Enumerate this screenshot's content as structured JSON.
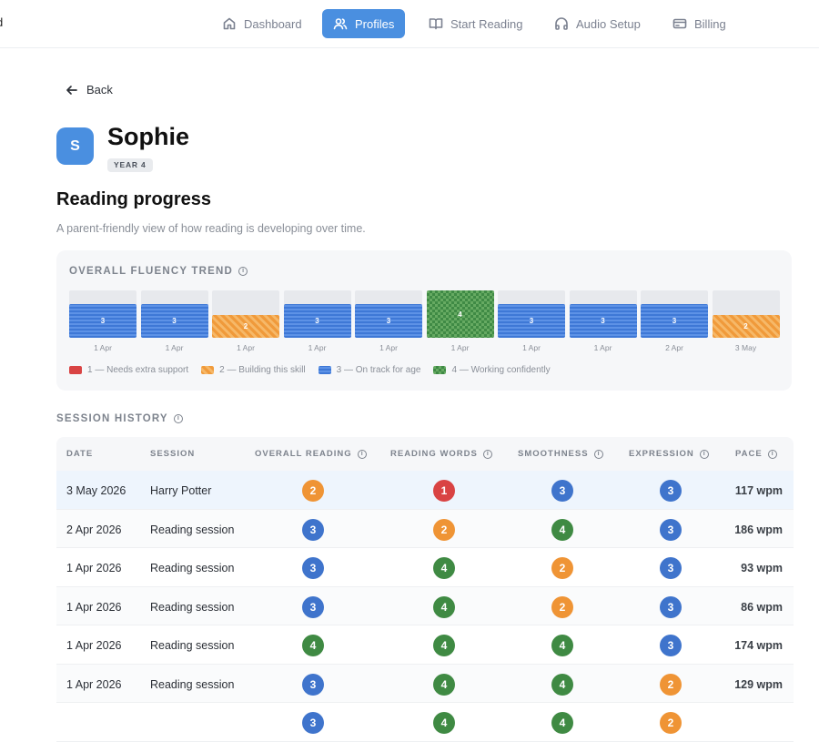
{
  "nav": {
    "cut_label": "d",
    "items": [
      {
        "label": "Dashboard",
        "icon": "home-icon"
      },
      {
        "label": "Profiles",
        "icon": "users-icon",
        "active": true
      },
      {
        "label": "Start Reading",
        "icon": "book-icon"
      },
      {
        "label": "Audio Setup",
        "icon": "headphones-icon"
      },
      {
        "label": "Billing",
        "icon": "credit-card-icon"
      }
    ]
  },
  "back_label": "Back",
  "profile": {
    "initial": "S",
    "name": "Sophie",
    "year": "YEAR 4"
  },
  "progress": {
    "title": "Reading progress",
    "subtitle": "A parent-friendly view of how reading is developing over time."
  },
  "trend": {
    "title": "OVERALL FLUENCY TREND",
    "chart_data": {
      "type": "bar",
      "categories": [
        "1 Apr",
        "1 Apr",
        "1 Apr",
        "1 Apr",
        "1 Apr",
        "1 Apr",
        "1 Apr",
        "1 Apr",
        "2 Apr",
        "3 May"
      ],
      "values": [
        3,
        3,
        2,
        3,
        3,
        4,
        3,
        3,
        3,
        2
      ],
      "ylim": [
        0,
        4
      ],
      "colors": {
        "1": "#d94444",
        "2": "#f09a3b",
        "3": "#3e78d6",
        "4": "#3f8a45"
      }
    },
    "legend": [
      {
        "level": 1,
        "label": "1 — Needs extra support"
      },
      {
        "level": 2,
        "label": "2 — Building this skill"
      },
      {
        "level": 3,
        "label": "3 — On track for age"
      },
      {
        "level": 4,
        "label": "4 — Working confidently"
      }
    ]
  },
  "history": {
    "title": "SESSION HISTORY",
    "columns": [
      "DATE",
      "SESSION",
      "OVERALL READING",
      "READING WORDS",
      "SMOOTHNESS",
      "EXPRESSION",
      "PACE"
    ],
    "rows": [
      {
        "date": "3 May 2026",
        "session": "Harry Potter",
        "overall": 2,
        "words": 1,
        "smooth": 3,
        "expression": 3,
        "pace": "117 wpm"
      },
      {
        "date": "2 Apr 2026",
        "session": "Reading session",
        "overall": 3,
        "words": 2,
        "smooth": 4,
        "expression": 3,
        "pace": "186 wpm"
      },
      {
        "date": "1 Apr 2026",
        "session": "Reading session",
        "overall": 3,
        "words": 4,
        "smooth": 2,
        "expression": 3,
        "pace": "93 wpm"
      },
      {
        "date": "1 Apr 2026",
        "session": "Reading session",
        "overall": 3,
        "words": 4,
        "smooth": 2,
        "expression": 3,
        "pace": "86 wpm"
      },
      {
        "date": "1 Apr 2026",
        "session": "Reading session",
        "overall": 4,
        "words": 4,
        "smooth": 4,
        "expression": 3,
        "pace": "174 wpm"
      },
      {
        "date": "1 Apr 2026",
        "session": "Reading session",
        "overall": 3,
        "words": 4,
        "smooth": 4,
        "expression": 2,
        "pace": "129 wpm"
      },
      {
        "date": "",
        "session": "",
        "overall": 3,
        "words": 4,
        "smooth": 4,
        "expression": 2,
        "pace": ""
      }
    ]
  }
}
